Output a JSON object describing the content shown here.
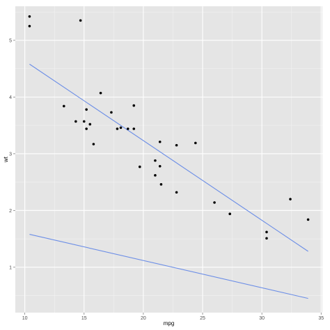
{
  "chart_data": {
    "type": "scatter",
    "title": "",
    "xlabel": "mpg",
    "ylabel": "wt",
    "xlim": [
      9.2,
      35.1
    ],
    "ylim": [
      0.2,
      5.6
    ],
    "x_ticks": [
      10,
      15,
      20,
      25,
      30,
      35
    ],
    "y_ticks": [
      1,
      2,
      3,
      4,
      5
    ],
    "grid": true,
    "legend": "none",
    "colors": {
      "panel_background": "#e5e5e5",
      "grid_major": "#ffffff",
      "grid_minor": "#f2f2f2",
      "points": "#000000",
      "lines": "#6c8ee6"
    },
    "points": [
      {
        "x": 10.4,
        "y": 5.42
      },
      {
        "x": 10.4,
        "y": 5.25
      },
      {
        "x": 14.7,
        "y": 5.35
      },
      {
        "x": 13.3,
        "y": 3.84
      },
      {
        "x": 14.3,
        "y": 3.57
      },
      {
        "x": 15.0,
        "y": 3.57
      },
      {
        "x": 15.2,
        "y": 3.44
      },
      {
        "x": 15.2,
        "y": 3.78
      },
      {
        "x": 15.5,
        "y": 3.52
      },
      {
        "x": 15.8,
        "y": 3.17
      },
      {
        "x": 16.4,
        "y": 4.07
      },
      {
        "x": 17.3,
        "y": 3.73
      },
      {
        "x": 17.8,
        "y": 3.44
      },
      {
        "x": 18.1,
        "y": 3.46
      },
      {
        "x": 18.7,
        "y": 3.44
      },
      {
        "x": 19.2,
        "y": 3.44
      },
      {
        "x": 19.2,
        "y": 3.85
      },
      {
        "x": 19.7,
        "y": 2.77
      },
      {
        "x": 21.0,
        "y": 2.62
      },
      {
        "x": 21.0,
        "y": 2.88
      },
      {
        "x": 21.4,
        "y": 3.21
      },
      {
        "x": 21.4,
        "y": 2.78
      },
      {
        "x": 21.5,
        "y": 2.46
      },
      {
        "x": 22.8,
        "y": 3.15
      },
      {
        "x": 22.8,
        "y": 2.32
      },
      {
        "x": 24.4,
        "y": 3.19
      },
      {
        "x": 26.0,
        "y": 2.14
      },
      {
        "x": 27.3,
        "y": 1.94
      },
      {
        "x": 30.4,
        "y": 1.62
      },
      {
        "x": 30.4,
        "y": 1.51
      },
      {
        "x": 32.4,
        "y": 2.2
      },
      {
        "x": 33.9,
        "y": 1.84
      }
    ],
    "lines": [
      {
        "x": [
          10.4,
          33.9
        ],
        "y": [
          4.58,
          1.28
        ]
      },
      {
        "x": [
          10.4,
          33.9
        ],
        "y": [
          1.58,
          0.45
        ]
      }
    ]
  }
}
